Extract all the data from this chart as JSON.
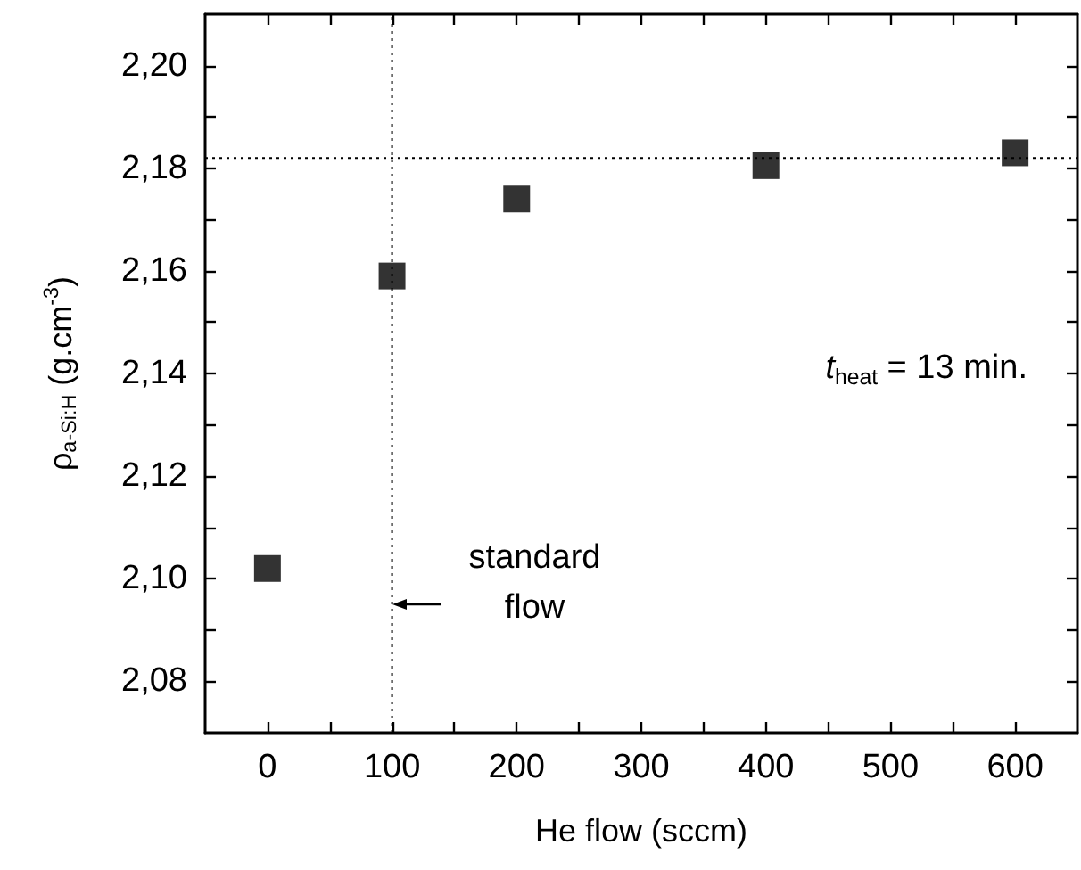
{
  "chart_data": {
    "type": "scatter",
    "xlabel": "He flow (sccm)",
    "ylabel": "ρ$_{a-Si:H}$ (g.cm$^{-3}$)",
    "x": [
      0,
      100,
      200,
      400,
      600
    ],
    "values": [
      2.102,
      2.159,
      2.174,
      2.1805,
      2.183
    ],
    "color": "#000000",
    "marker": "square",
    "grid": false,
    "xlim": [
      -50,
      650
    ],
    "xticks": [
      0,
      {
        "value": 50,
        "label": null
      },
      100,
      {
        "value": 150,
        "label": null
      },
      200,
      {
        "value": 250,
        "label": null
      },
      300,
      {
        "value": 350,
        "label": null
      },
      400,
      {
        "value": 450,
        "label": null
      },
      500,
      {
        "value": 550,
        "label": null
      },
      600
    ],
    "ylim": [
      2.07,
      2.21
    ],
    "yticks": [
      {
        "value": 2.08,
        "label": "2,08"
      },
      {
        "value": 2.09,
        "label": null
      },
      {
        "value": 2.1,
        "label": "2,10"
      },
      {
        "value": 2.11,
        "label": null
      },
      {
        "value": 2.12,
        "label": "2,12"
      },
      {
        "value": 2.13,
        "label": null
      },
      {
        "value": 2.14,
        "label": "2,14"
      },
      {
        "value": 2.15,
        "label": null
      },
      {
        "value": 2.16,
        "label": "2,16"
      },
      {
        "value": 2.17,
        "label": null
      },
      {
        "value": 2.18,
        "label": "2,18"
      },
      {
        "value": 2.19,
        "label": null
      },
      {
        "value": 2.2,
        "label": "2,20"
      }
    ],
    "ref_lines": [
      {
        "axis": "x",
        "value": 100,
        "line_style": "dotted"
      },
      {
        "axis": "y",
        "value": 2.182,
        "line_style": "dotted"
      }
    ],
    "annotations": [
      {
        "text": "standard\nflow",
        "x": 100,
        "y": 2.095
      },
      "t$_{heat}$ = 13 min."
    ]
  }
}
